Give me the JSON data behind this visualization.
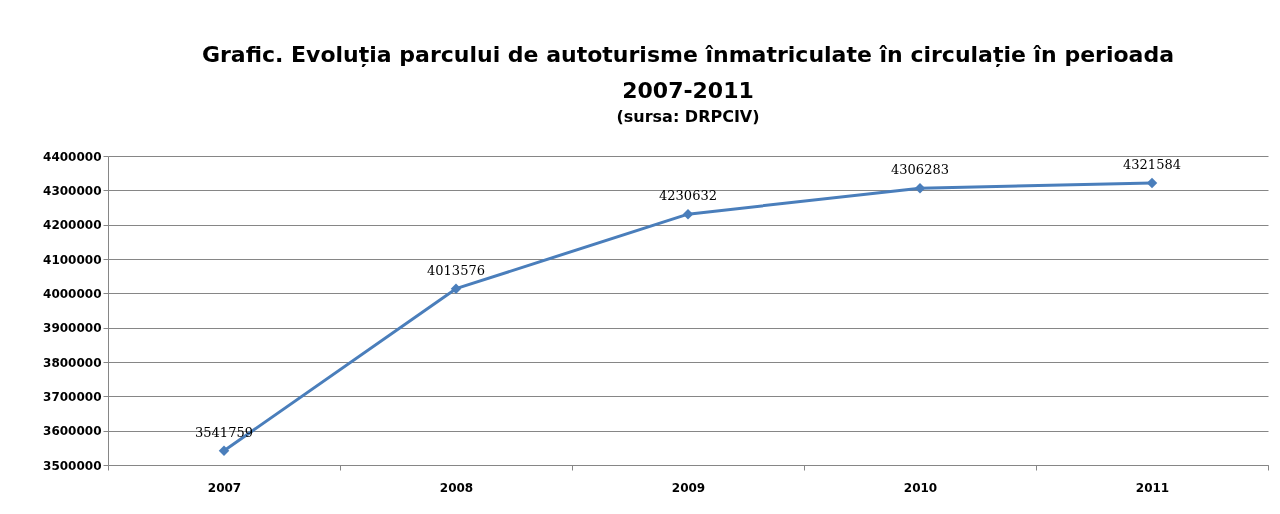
{
  "chart_data": {
    "type": "line",
    "title": "Grafic. Evoluția parcului de autoturisme înmatriculate în circulație în perioada 2007-2011",
    "subtitle": "(sursa: DRPCIV)",
    "categories": [
      "2007",
      "2008",
      "2009",
      "2010",
      "2011"
    ],
    "series": [
      {
        "color": "#4a7ebb",
        "values": [
          3541759,
          4013576,
          4230632,
          4306283,
          4321584
        ]
      }
    ],
    "ylim": [
      3500000,
      4400000
    ],
    "yticks": [
      3500000,
      3600000,
      3700000,
      3800000,
      3900000,
      4000000,
      4100000,
      4200000,
      4300000,
      4400000
    ],
    "grid": "y",
    "marker": "diamond",
    "data_labels": true
  }
}
